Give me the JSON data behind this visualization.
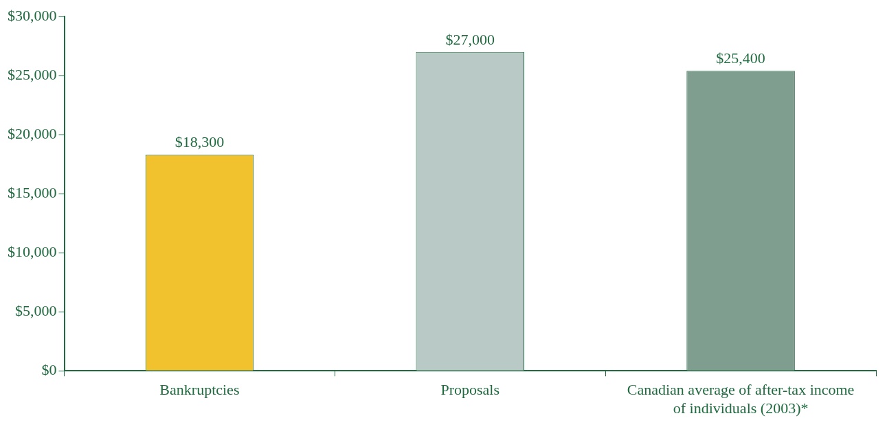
{
  "chart_data": {
    "type": "bar",
    "categories": [
      "Bankruptcies",
      "Proposals",
      "Canadian average of after-tax income of individuals (2003)*"
    ],
    "values": [
      18300,
      27000,
      25400
    ],
    "colors": [
      "#f2c12e",
      "#b8c9c6",
      "#7f9e90"
    ],
    "ylim": [
      0,
      30000
    ],
    "yticks": [
      {
        "value": 0,
        "label": "$0"
      },
      {
        "value": 5000,
        "label": "$5,000"
      },
      {
        "value": 10000,
        "label": "$10,000"
      },
      {
        "value": 15000,
        "label": "$15,000"
      },
      {
        "value": 20000,
        "label": "$20,000"
      },
      {
        "value": 25000,
        "label": "$25,000"
      },
      {
        "value": 30000,
        "label": "$30,000"
      }
    ],
    "value_labels": [
      "$18,300",
      "$27,000",
      "$25,400"
    ],
    "grid": false,
    "legend": false
  }
}
